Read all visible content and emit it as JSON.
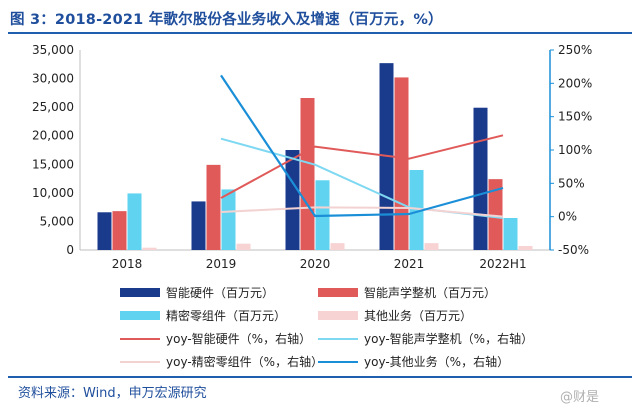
{
  "title": "图 3：2018-2021 年歌尔股份各业务收入及增速（百万元，%）",
  "source": "资料来源：Wind，申万宏源研究",
  "watermark": "@财是",
  "chart_data": {
    "type": "bar",
    "categories": [
      "2018",
      "2019",
      "2020",
      "2021",
      "2022H1"
    ],
    "ylim": [
      0,
      35000
    ],
    "y_ticks": [
      "0",
      "5,000",
      "10,000",
      "15,000",
      "20,000",
      "25,000",
      "30,000",
      "35,000"
    ],
    "y2lim": [
      -50,
      250
    ],
    "y2_ticks": [
      "-50%",
      "0%",
      "50%",
      "100%",
      "150%",
      "200%",
      "250%"
    ],
    "series": [
      {
        "name": "智能硬件（百万元）",
        "kind": "bar",
        "color": "#1a3a8c",
        "values": [
          6600,
          8500,
          17500,
          32700,
          24900
        ]
      },
      {
        "name": "智能声学整机（百万元）",
        "kind": "bar",
        "color": "#e05a5a",
        "values": [
          6800,
          14900,
          26600,
          30200,
          12400
        ]
      },
      {
        "name": "精密零组件（百万元）",
        "kind": "bar",
        "color": "#5fd3f0",
        "values": [
          9900,
          10600,
          12200,
          14000,
          5600
        ]
      },
      {
        "name": "其他业务（百万元）",
        "kind": "bar",
        "color": "#f7d3d3",
        "values": [
          400,
          1100,
          1200,
          1200,
          700
        ]
      },
      {
        "name": "yoy-智能硬件（%，右轴）",
        "kind": "line",
        "color": "#e05a5a",
        "values": [
          null,
          28,
          105,
          87,
          122
        ]
      },
      {
        "name": "yoy-智能声学整机（%，右轴）",
        "kind": "line",
        "color": "#7fd8f2",
        "values": [
          null,
          117,
          78,
          14,
          -2
        ]
      },
      {
        "name": "yoy-精密零组件（%，右轴）",
        "kind": "line",
        "color": "#f3d2d2",
        "values": [
          null,
          7,
          14,
          13,
          0
        ]
      },
      {
        "name": "yoy-其他业务（%，右轴）",
        "kind": "line",
        "color": "#1a8fd8",
        "values": [
          null,
          212,
          1,
          4,
          43
        ]
      }
    ],
    "legend_position": "bottom",
    "grid": false
  }
}
